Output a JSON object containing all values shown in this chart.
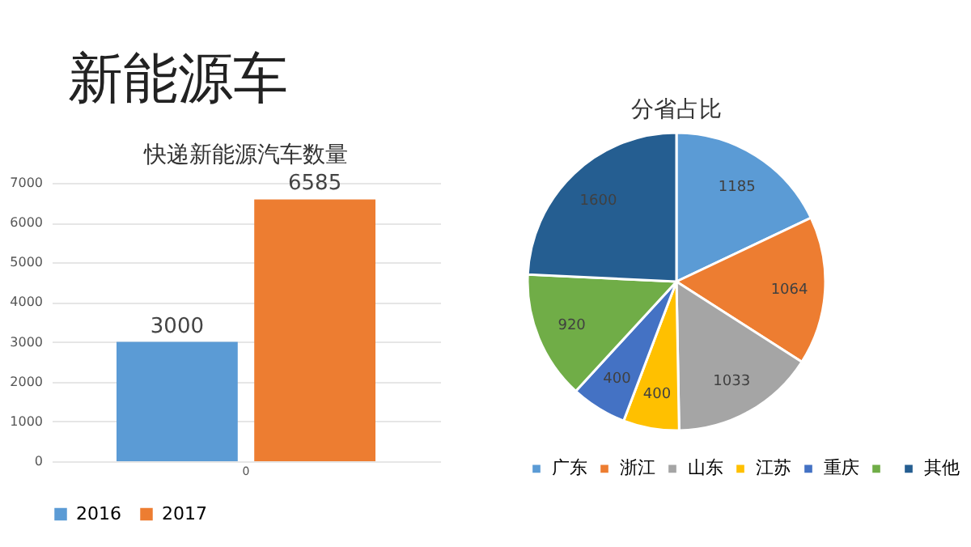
{
  "chart_data": [
    {
      "type": "other",
      "title": "新能源车"
    },
    {
      "type": "bar",
      "title": "快递新能源汽车数量",
      "categories": [
        "0"
      ],
      "series": [
        {
          "name": "2016",
          "color": "#5b9bd5",
          "values": [
            3000
          ]
        },
        {
          "name": "2017",
          "color": "#ed7d31",
          "values": [
            6585
          ]
        }
      ],
      "ylim": [
        0,
        7000
      ],
      "yticks": [
        0,
        1000,
        2000,
        3000,
        4000,
        5000,
        6000,
        7000
      ],
      "grid": "y",
      "legend": "bottom",
      "data_labels": true
    },
    {
      "type": "pie",
      "title": "分省占比",
      "categories": [
        "广东",
        "浙江",
        "山东",
        "江苏",
        "重庆",
        null,
        "其他"
      ],
      "values": [
        1185,
        1064,
        1033,
        400,
        400,
        920,
        1600
      ],
      "colors": [
        "#5b9bd5",
        "#ed7d31",
        "#a5a5a5",
        "#ffc000",
        "#4472c4",
        "#70ad47",
        "#255e91"
      ],
      "legend": "bottom",
      "data_labels": true
    }
  ]
}
